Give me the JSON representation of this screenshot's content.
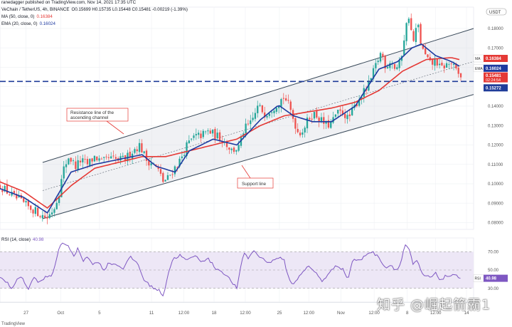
{
  "header": {
    "published": "ranedagger published on TradingView.com, Nov 14, 2021 17:35 UTC",
    "symbol": "VeChain / TetherUS, 4h, BINANCE",
    "ohlc": "O0.15699 H0.15735 L0.15448 C0.15481 -0.00219 (-1.39%)",
    "ma_legend": "MA (50, close, 0)",
    "ma_value": "0.16384",
    "ema_legend": "EMA (20, close, 0)",
    "ema_value": "0.16024"
  },
  "rsi_header": {
    "legend": "RSI (14, close)",
    "value": "40.98"
  },
  "watermark": "知乎 @崛起箭霸1",
  "footer": "TradingView",
  "colors": {
    "up": "#26a69a",
    "down": "#ef5350",
    "ma": "#e53935",
    "ema": "#1e3aa0",
    "channel": "#3a4a5a",
    "support_dash": "#1f3c99",
    "rsi_line": "#7e57c2",
    "rsi_band": "#ede7f6",
    "badge_ma": "#e53935",
    "badge_ema": "#1e3aa0",
    "badge_price": "#e53935",
    "badge_support": "#1f3c99",
    "badge_rsi": "#7e57c2"
  },
  "chart_data": [
    {
      "type": "candlestick",
      "title": "VeChain / TetherUS, 4h, BINANCE",
      "currency_label": "USDT",
      "y_ticks": [
        "0.18000",
        "0.17000",
        "0.16000",
        "0.15000",
        "0.14000",
        "0.13000",
        "0.12000",
        "0.11000",
        "0.10000",
        "0.09000",
        "0.08000"
      ],
      "ylim": [
        0.0765,
        0.191
      ],
      "x_ticks": [
        "27",
        "Oct",
        "5",
        "11",
        "12:00",
        "18",
        "12:00",
        "25",
        "12:00",
        "Nov",
        "12:00",
        "8",
        "12:00",
        "14"
      ],
      "xlim": [
        0,
        100
      ],
      "x_tick_positions": [
        5.5,
        12.8,
        21.0,
        32.0,
        38.8,
        45.2,
        51.8,
        59.0,
        65.2,
        72.0,
        79.0,
        86.0,
        92.0,
        98.5
      ],
      "price_anchors": [
        [
          0,
          0.099
        ],
        [
          2,
          0.095
        ],
        [
          4,
          0.0915
        ],
        [
          6,
          0.088
        ],
        [
          7.5,
          0.086
        ],
        [
          9,
          0.0835
        ],
        [
          10,
          0.0825
        ],
        [
          11.5,
          0.088
        ],
        [
          12.5,
          0.096
        ],
        [
          13.5,
          0.108
        ],
        [
          14.5,
          0.114
        ],
        [
          16,
          0.109
        ],
        [
          17,
          0.112
        ],
        [
          18.5,
          0.11
        ],
        [
          20,
          0.114
        ],
        [
          21.5,
          0.111
        ],
        [
          23,
          0.113
        ],
        [
          25,
          0.112
        ],
        [
          26.5,
          0.113
        ],
        [
          28,
          0.117
        ],
        [
          29.5,
          0.12
        ],
        [
          31,
          0.112
        ],
        [
          32,
          0.111
        ],
        [
          33.2,
          0.108
        ],
        [
          34.5,
          0.101
        ],
        [
          35.5,
          0.103
        ],
        [
          36.5,
          0.107
        ],
        [
          38,
          0.112
        ],
        [
          39.5,
          0.12
        ],
        [
          41,
          0.124
        ],
        [
          42.5,
          0.125
        ],
        [
          44,
          0.127
        ],
        [
          45.5,
          0.125
        ],
        [
          47,
          0.123
        ],
        [
          49,
          0.117
        ],
        [
          50.5,
          0.119
        ],
        [
          51.5,
          0.128
        ],
        [
          53,
          0.131
        ],
        [
          54.5,
          0.14
        ],
        [
          56,
          0.136
        ],
        [
          57.5,
          0.139
        ],
        [
          58.8,
          0.142
        ],
        [
          60,
          0.145
        ],
        [
          61,
          0.14
        ],
        [
          62,
          0.133
        ],
        [
          63,
          0.126
        ],
        [
          64,
          0.128
        ],
        [
          65.5,
          0.135
        ],
        [
          66.5,
          0.136
        ],
        [
          68,
          0.132
        ],
        [
          69,
          0.13
        ],
        [
          70,
          0.131
        ],
        [
          71,
          0.136
        ],
        [
          72.5,
          0.137
        ],
        [
          73.5,
          0.133
        ],
        [
          74.5,
          0.138
        ],
        [
          76,
          0.145
        ],
        [
          77.5,
          0.149
        ],
        [
          78.5,
          0.155
        ],
        [
          79.5,
          0.162
        ],
        [
          80.5,
          0.168
        ],
        [
          81.5,
          0.16
        ],
        [
          82.5,
          0.164
        ],
        [
          83.5,
          0.159
        ],
        [
          84.5,
          0.162
        ],
        [
          85.5,
          0.178
        ],
        [
          86.3,
          0.187
        ],
        [
          87.2,
          0.172
        ],
        [
          88.2,
          0.183
        ],
        [
          89,
          0.17
        ],
        [
          90,
          0.165
        ],
        [
          91,
          0.161
        ],
        [
          92,
          0.164
        ],
        [
          93,
          0.159
        ],
        [
          94,
          0.161
        ],
        [
          95.3,
          0.162
        ],
        [
          96.5,
          0.157
        ],
        [
          97.3,
          0.1548
        ]
      ],
      "ma50_anchors": [
        [
          0,
          0.101
        ],
        [
          5,
          0.096
        ],
        [
          10,
          0.0875
        ],
        [
          15,
          0.099
        ],
        [
          20,
          0.108
        ],
        [
          25,
          0.111
        ],
        [
          30,
          0.114
        ],
        [
          35,
          0.114
        ],
        [
          40,
          0.117
        ],
        [
          45,
          0.12
        ],
        [
          50,
          0.123
        ],
        [
          55,
          0.13
        ],
        [
          60,
          0.135
        ],
        [
          65,
          0.137
        ],
        [
          70,
          0.139
        ],
        [
          75,
          0.142
        ],
        [
          80,
          0.148
        ],
        [
          85,
          0.158
        ],
        [
          90,
          0.164
        ],
        [
          95.3,
          0.165
        ],
        [
          97.3,
          0.1638
        ]
      ],
      "ema20_anchors": [
        [
          0,
          0.0975
        ],
        [
          5,
          0.093
        ],
        [
          10,
          0.085
        ],
        [
          15,
          0.106
        ],
        [
          20,
          0.11
        ],
        [
          25,
          0.1125
        ],
        [
          30,
          0.115
        ],
        [
          33,
          0.109
        ],
        [
          37,
          0.106
        ],
        [
          40,
          0.117
        ],
        [
          45,
          0.123
        ],
        [
          50,
          0.12
        ],
        [
          55,
          0.133
        ],
        [
          58.8,
          0.1405
        ],
        [
          62,
          0.135
        ],
        [
          66,
          0.132
        ],
        [
          70,
          0.132
        ],
        [
          75,
          0.14
        ],
        [
          80,
          0.159
        ],
        [
          84,
          0.163
        ],
        [
          87,
          0.17
        ],
        [
          89,
          0.172
        ],
        [
          92,
          0.166
        ],
        [
          95.3,
          0.163
        ],
        [
          97.3,
          0.1602
        ]
      ],
      "channel_upper": {
        "x": [
          9,
          100
        ],
        "y": [
          0.111,
          0.18
        ],
        "label": "Resistance line of the ascending channel"
      },
      "channel_lower": {
        "x": [
          9,
          100
        ],
        "y": [
          0.082,
          0.146
        ],
        "label": "Support line"
      },
      "channel_mid": {
        "x": [
          9,
          100
        ],
        "y": [
          0.0965,
          0.163
        ]
      },
      "support_level": {
        "y": 0.15272,
        "style": "dashed"
      },
      "price_labels": {
        "ma": {
          "label": "MA",
          "value": "0.16384"
        },
        "ema": {
          "label": "EMA",
          "value": "0.16024"
        },
        "last": {
          "value": "0.15481",
          "countdown": "02:24:54"
        },
        "support": {
          "value": "0.15272"
        }
      },
      "annotations": [
        {
          "text_lines": [
            "Resistance line of the",
            "ascending channel"
          ]
        },
        {
          "text_lines": [
            "Support line"
          ]
        }
      ]
    },
    {
      "type": "line",
      "title": "RSI (14, close)",
      "ylim": [
        15,
        85
      ],
      "y_ticks": [
        "70.00",
        "50.00",
        "30.00"
      ],
      "band": [
        30,
        70
      ],
      "mid": 50,
      "current": 40.98,
      "rsi_anchors": [
        [
          0,
          42
        ],
        [
          1.5,
          36
        ],
        [
          2.5,
          30
        ],
        [
          3.5,
          38
        ],
        [
          4.5,
          44
        ],
        [
          6,
          28
        ],
        [
          7,
          42
        ],
        [
          8.5,
          36
        ],
        [
          9.5,
          42
        ],
        [
          11,
          44
        ],
        [
          12.5,
          74
        ],
        [
          13.5,
          80
        ],
        [
          14.5,
          76
        ],
        [
          15.5,
          64
        ],
        [
          16.5,
          74
        ],
        [
          17.5,
          60
        ],
        [
          18.5,
          66
        ],
        [
          19.5,
          55
        ],
        [
          20.5,
          60
        ],
        [
          22,
          50
        ],
        [
          23,
          58
        ],
        [
          24.5,
          56
        ],
        [
          26,
          52
        ],
        [
          27.5,
          64
        ],
        [
          29,
          58
        ],
        [
          30.5,
          38
        ],
        [
          31.5,
          34
        ],
        [
          32.5,
          30
        ],
        [
          33.5,
          28
        ],
        [
          34.5,
          22
        ],
        [
          35.5,
          46
        ],
        [
          36.5,
          62
        ],
        [
          38,
          66
        ],
        [
          39.5,
          60
        ],
        [
          41,
          66
        ],
        [
          42.5,
          60
        ],
        [
          44,
          62
        ],
        [
          45.5,
          52
        ],
        [
          47,
          48
        ],
        [
          48.5,
          40
        ],
        [
          50,
          30
        ],
        [
          51.5,
          70
        ],
        [
          52.5,
          62
        ],
        [
          53.5,
          72
        ],
        [
          54.5,
          66
        ],
        [
          55.5,
          62
        ],
        [
          57,
          58
        ],
        [
          58.8,
          64
        ],
        [
          60,
          60
        ],
        [
          61,
          40
        ],
        [
          62,
          34
        ],
        [
          63.5,
          46
        ],
        [
          65,
          54
        ],
        [
          66.5,
          48
        ],
        [
          68,
          38
        ],
        [
          69.5,
          46
        ],
        [
          71,
          56
        ],
        [
          72.5,
          50
        ],
        [
          73.5,
          40
        ],
        [
          74.5,
          62
        ],
        [
          76,
          60
        ],
        [
          77.5,
          68
        ],
        [
          78.5,
          70
        ],
        [
          79.5,
          66
        ],
        [
          80.5,
          60
        ],
        [
          81.5,
          52
        ],
        [
          82.5,
          56
        ],
        [
          83.5,
          50
        ],
        [
          84.5,
          55
        ],
        [
          85.5,
          78
        ],
        [
          86.3,
          74
        ],
        [
          87.2,
          56
        ],
        [
          88.2,
          60
        ],
        [
          89,
          46
        ],
        [
          90,
          43
        ],
        [
          91,
          42
        ],
        [
          92,
          46
        ],
        [
          93,
          39
        ],
        [
          94,
          43
        ],
        [
          95.3,
          44
        ],
        [
          96.5,
          43
        ],
        [
          97.3,
          40.98
        ]
      ],
      "x_ticks": [
        "27",
        "Oct",
        "5",
        "11",
        "12:00",
        "18",
        "12:00",
        "25",
        "12:00",
        "Nov",
        "12:00",
        "8",
        "12:00",
        "14"
      ]
    }
  ]
}
